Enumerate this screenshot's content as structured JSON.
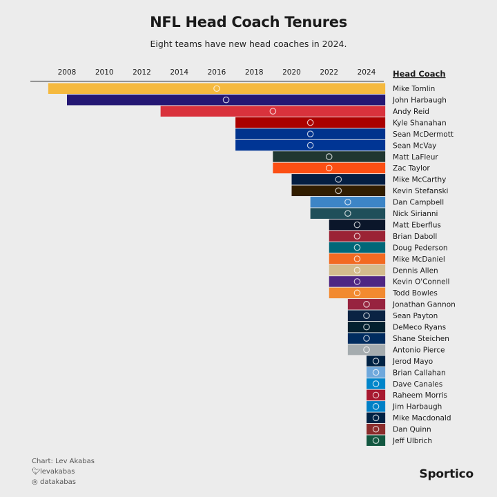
{
  "title": "NFL Head Coach Tenures",
  "subtitle": "Eight teams have new head coaches in 2024.",
  "legend_header": "Head Coach",
  "credits": {
    "chart": "Chart: Lev Akabas",
    "twitter": "levakabas",
    "instagram": "datakabas"
  },
  "brand": "Sportico",
  "colors": {
    "background": "#ececec",
    "axis": "#1a1a1a"
  },
  "chart_data": {
    "type": "bar",
    "orientation": "horizontal",
    "title": "NFL Head Coach Tenures",
    "subtitle": "Eight teams have new head coaches in 2024.",
    "x_ticks": [
      2008,
      2010,
      2012,
      2014,
      2016,
      2018,
      2020,
      2022,
      2024
    ],
    "xlim": [
      2006,
      2025
    ],
    "bars_end": 2025,
    "categories": [
      "Mike Tomlin",
      "John Harbaugh",
      "Andy Reid",
      "Kyle Shanahan",
      "Sean McDermott",
      "Sean McVay",
      "Matt LaFleur",
      "Zac Taylor",
      "Mike McCarthy",
      "Kevin Stefanski",
      "Dan Campbell",
      "Nick Sirianni",
      "Matt Eberflus",
      "Brian Daboll",
      "Doug Pederson",
      "Mike McDaniel",
      "Dennis Allen",
      "Kevin O'Connell",
      "Todd Bowles",
      "Jonathan Gannon",
      "Sean Payton",
      "DeMeco Ryans",
      "Shane Steichen",
      "Antonio Pierce",
      "Jerod Mayo",
      "Brian Callahan",
      "Dave Canales",
      "Raheem Morris",
      "Jim Harbaugh",
      "Mike Macdonald",
      "Dan Quinn",
      "Jeff Ulbrich"
    ],
    "start_years": [
      2007,
      2008,
      2013,
      2017,
      2017,
      2017,
      2019,
      2019,
      2020,
      2020,
      2021,
      2021,
      2022,
      2022,
      2022,
      2022,
      2022,
      2022,
      2022,
      2023,
      2023,
      2023,
      2023,
      2023,
      2024,
      2024,
      2024,
      2024,
      2024,
      2024,
      2024,
      2024
    ],
    "bar_colors": [
      "#f5b93e",
      "#241773",
      "#d9323c",
      "#aa0000",
      "#00338d",
      "#003594",
      "#203731",
      "#fb4f14",
      "#041e42",
      "#311d00",
      "#3d85c6",
      "#1f4f5a",
      "#0b162a",
      "#9b2335",
      "#006778",
      "#f26a21",
      "#d3bc8d",
      "#4f2683",
      "#f28a30",
      "#97233f",
      "#0a2343",
      "#03202f",
      "#002c5f",
      "#a5acaf",
      "#002244",
      "#6fa8dc",
      "#0085ca",
      "#a71930",
      "#0080c6",
      "#002244",
      "#8b2c2c",
      "#125740"
    ],
    "icons": [
      "steelers-logo",
      "ravens-logo",
      "chiefs-logo",
      "49ers-logo",
      "bills-logo",
      "rams-logo",
      "packers-logo",
      "bengals-logo",
      "cowboys-logo",
      "browns-logo",
      "lions-logo",
      "eagles-logo",
      "bears-logo",
      "giants-logo",
      "jaguars-logo",
      "dolphins-logo",
      "saints-logo",
      "vikings-logo",
      "buccaneers-logo",
      "cardinals-logo",
      "broncos-logo",
      "texans-logo",
      "colts-logo",
      "raiders-logo",
      "patriots-logo",
      "titans-logo",
      "panthers-logo",
      "falcons-logo",
      "chargers-logo",
      "seahawks-logo",
      "commanders-logo",
      "jets-logo"
    ]
  }
}
